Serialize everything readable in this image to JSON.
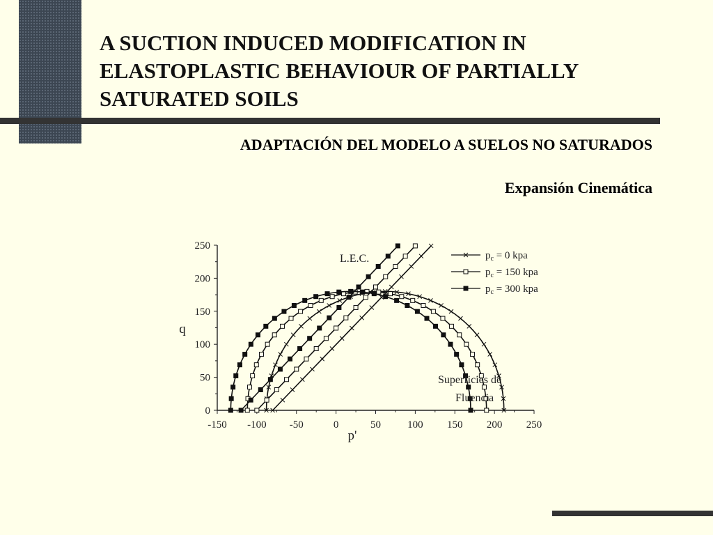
{
  "slide": {
    "title_lines": [
      "A SUCTION INDUCED MODIFICATION IN",
      "ELASTOPLASTIC BEHAVIOUR OF PARTIALLY",
      "SATURATED SOILS"
    ],
    "subtitle": "ADAPTACIÓN DEL MODELO A SUELOS NO SATURADOS",
    "section": "Expansión Cinemática",
    "colors": {
      "background": "#ffffea",
      "rule": "#333333",
      "side_block": "#3c4652"
    }
  },
  "chart_data": {
    "type": "line",
    "xlabel": "p'",
    "ylabel": "q",
    "xlim": [
      -150,
      250
    ],
    "ylim": [
      0,
      250
    ],
    "xticks": [
      -150,
      -100,
      -50,
      0,
      50,
      100,
      150,
      200,
      250
    ],
    "yticks": [
      0,
      50,
      100,
      150,
      200,
      250
    ],
    "grid": false,
    "legend_position": "top-right",
    "annotations": {
      "lec": "L.E.C.",
      "surface_line1": "Superficies de",
      "surface_line2": "Fluencia"
    },
    "series": [
      {
        "name": "pc = 0 kpa",
        "legend_main": "p",
        "legend_sub": "c",
        "legend_rest": " = 0 kpa",
        "marker": "cross",
        "yield_surface": {
          "p_min": -88,
          "p_max": 212,
          "q_max": 180
        },
        "lec_line": {
          "p_start": -80,
          "p_end": 120,
          "q_at_end": 249
        }
      },
      {
        "name": "pc = 150 kpa",
        "legend_main": "p",
        "legend_sub": "c",
        "legend_rest": " = 150 kpa",
        "marker": "open-square",
        "yield_surface": {
          "p_min": -112,
          "p_max": 190,
          "q_max": 180
        },
        "lec_line": {
          "p_start": -100,
          "p_end": 100,
          "q_at_end": 249
        }
      },
      {
        "name": "pc = 300 kpa",
        "legend_main": "p",
        "legend_sub": "c",
        "legend_rest": " = 300 kpa",
        "marker": "filled-square",
        "yield_surface": {
          "p_min": -133,
          "p_max": 170,
          "q_max": 180
        },
        "lec_line": {
          "p_start": -120,
          "p_end": 78,
          "q_at_end": 249
        }
      }
    ]
  }
}
